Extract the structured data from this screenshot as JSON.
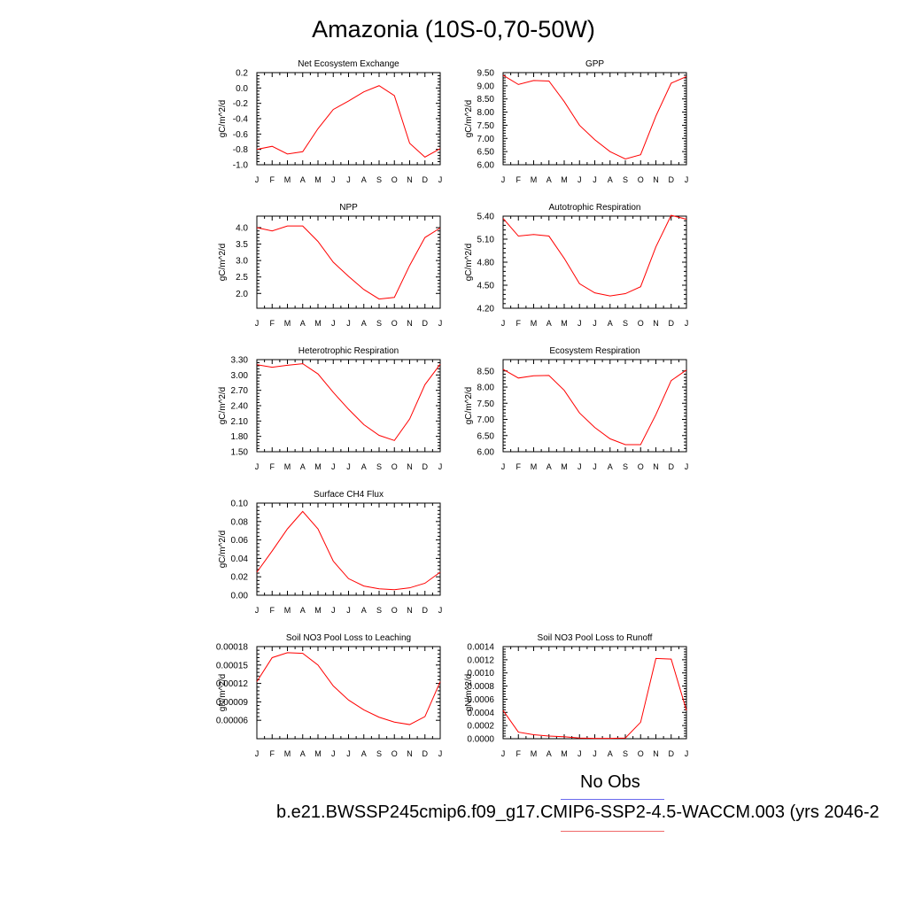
{
  "title": "Amazonia (10S-0,70-50W)",
  "legend": {
    "obs_label": "No Obs",
    "obs_color": "#6a6aee",
    "case_label": "b.e21.BWSSP245cmip6.f09_g17.CMIP6-SSP2-4.5-WACCM.003 (yrs 2046-2",
    "case_color": "#f06a6a"
  },
  "chart_data": [
    {
      "type": "line",
      "title": "Net Ecosystem Exchange",
      "ylabel": "gC/m^2/d",
      "x": [
        "J",
        "F",
        "M",
        "A",
        "M",
        "J",
        "J",
        "A",
        "S",
        "O",
        "N",
        "D",
        "J"
      ],
      "ylim": [
        -1.0,
        0.2
      ],
      "yticks": [
        "-1.0",
        "-0.8",
        "-0.6",
        "-0.4",
        "-0.2",
        "0.0",
        "0.2"
      ],
      "series": [
        {
          "color": "#ff0000",
          "values": [
            -0.8,
            -0.76,
            -0.86,
            -0.83,
            -0.53,
            -0.28,
            -0.17,
            -0.05,
            0.03,
            -0.1,
            -0.72,
            -0.9,
            -0.79
          ]
        }
      ]
    },
    {
      "type": "line",
      "title": "GPP",
      "ylabel": "gC/m^2/d",
      "x": [
        "J",
        "F",
        "M",
        "A",
        "M",
        "J",
        "J",
        "A",
        "S",
        "O",
        "N",
        "D",
        "J"
      ],
      "ylim": [
        6.0,
        9.5
      ],
      "yticks": [
        "6.00",
        "6.50",
        "7.00",
        "7.50",
        "8.00",
        "8.50",
        "9.00",
        "9.50"
      ],
      "series": [
        {
          "color": "#ff0000",
          "values": [
            9.4,
            9.05,
            9.2,
            9.18,
            8.4,
            7.5,
            6.95,
            6.5,
            6.22,
            6.38,
            7.85,
            9.1,
            9.35
          ]
        }
      ]
    },
    {
      "type": "line",
      "title": "NPP",
      "ylabel": "gC/m^2/d",
      "x": [
        "J",
        "F",
        "M",
        "A",
        "M",
        "J",
        "J",
        "A",
        "S",
        "O",
        "N",
        "D",
        "J"
      ],
      "ylim": [
        1.55,
        4.35
      ],
      "yticks": [
        "2.0",
        "2.5",
        "3.0",
        "3.5",
        "4.0"
      ],
      "series": [
        {
          "color": "#ff0000",
          "values": [
            4.0,
            3.9,
            4.05,
            4.05,
            3.58,
            2.95,
            2.52,
            2.12,
            1.83,
            1.88,
            2.85,
            3.7,
            3.99
          ]
        }
      ]
    },
    {
      "type": "line",
      "title": "Autotrophic Respiration",
      "ylabel": "gC/m^2/d",
      "x": [
        "J",
        "F",
        "M",
        "A",
        "M",
        "J",
        "J",
        "A",
        "S",
        "O",
        "N",
        "D",
        "J"
      ],
      "ylim": [
        4.2,
        5.4
      ],
      "yticks": [
        "4.20",
        "4.50",
        "4.80",
        "5.10",
        "5.40"
      ],
      "series": [
        {
          "color": "#ff0000",
          "values": [
            5.37,
            5.14,
            5.16,
            5.14,
            4.85,
            4.52,
            4.4,
            4.36,
            4.39,
            4.48,
            5.0,
            5.41,
            5.36
          ]
        }
      ]
    },
    {
      "type": "line",
      "title": "Heterotrophic Respiration",
      "ylabel": "gC/m^2/d",
      "x": [
        "J",
        "F",
        "M",
        "A",
        "M",
        "J",
        "J",
        "A",
        "S",
        "O",
        "N",
        "D",
        "J"
      ],
      "ylim": [
        1.5,
        3.3
      ],
      "yticks": [
        "1.50",
        "1.80",
        "2.10",
        "2.40",
        "2.70",
        "3.00",
        "3.30"
      ],
      "series": [
        {
          "color": "#ff0000",
          "values": [
            3.2,
            3.15,
            3.19,
            3.22,
            3.02,
            2.66,
            2.33,
            2.03,
            1.82,
            1.72,
            2.14,
            2.81,
            3.21
          ]
        }
      ]
    },
    {
      "type": "line",
      "title": "Ecosystem Respiration",
      "ylabel": "gC/m^2/d",
      "x": [
        "J",
        "F",
        "M",
        "A",
        "M",
        "J",
        "J",
        "A",
        "S",
        "O",
        "N",
        "D",
        "J"
      ],
      "ylim": [
        6.0,
        8.85
      ],
      "yticks": [
        "6.00",
        "6.50",
        "7.00",
        "7.50",
        "8.00",
        "8.50"
      ],
      "series": [
        {
          "color": "#ff0000",
          "values": [
            8.55,
            8.28,
            8.35,
            8.36,
            7.9,
            7.2,
            6.75,
            6.4,
            6.22,
            6.22,
            7.15,
            8.2,
            8.53
          ]
        }
      ]
    },
    {
      "type": "line",
      "title": "Surface CH4 Flux",
      "ylabel": "gC/m^2/d",
      "x": [
        "J",
        "F",
        "M",
        "A",
        "M",
        "J",
        "J",
        "A",
        "S",
        "O",
        "N",
        "D",
        "J"
      ],
      "ylim": [
        0.0,
        0.1
      ],
      "yticks": [
        "0.00",
        "0.02",
        "0.04",
        "0.06",
        "0.08",
        "0.10"
      ],
      "series": [
        {
          "color": "#ff0000",
          "values": [
            0.025,
            0.048,
            0.072,
            0.091,
            0.072,
            0.037,
            0.018,
            0.01,
            0.007,
            0.006,
            0.008,
            0.013,
            0.025
          ]
        }
      ]
    },
    {
      "type": "line",
      "title": "Soil NO3 Pool Loss to Leaching",
      "ylabel": "gN/m^2/d",
      "x": [
        "J",
        "F",
        "M",
        "A",
        "M",
        "J",
        "J",
        "A",
        "S",
        "O",
        "N",
        "D",
        "J"
      ],
      "ylim": [
        3e-05,
        0.00018
      ],
      "yticks": [
        "0.00006",
        "0.00009",
        "0.00012",
        "0.00015",
        "0.00018"
      ],
      "series": [
        {
          "color": "#ff0000",
          "values": [
            0.000123,
            0.000162,
            0.00017,
            0.000169,
            0.00015,
            0.000116,
            9.3e-05,
            7.7e-05,
            6.5e-05,
            5.7e-05,
            5.3e-05,
            6.6e-05,
            0.000123
          ]
        }
      ]
    },
    {
      "type": "line",
      "title": "Soil NO3 Pool Loss to Runoff",
      "ylabel": "gN/m^2/d",
      "x": [
        "J",
        "F",
        "M",
        "A",
        "M",
        "J",
        "J",
        "A",
        "S",
        "O",
        "N",
        "D",
        "J"
      ],
      "ylim": [
        0.0,
        0.0014
      ],
      "yticks": [
        "0.0000",
        "0.0002",
        "0.0004",
        "0.0006",
        "0.0008",
        "0.0010",
        "0.0012",
        "0.0014"
      ],
      "series": [
        {
          "color": "#ff0000",
          "values": [
            0.00043,
            0.0001,
            6e-05,
            4e-05,
            3e-05,
            1e-05,
            5e-06,
            5e-06,
            1e-05,
            0.00025,
            0.00122,
            0.00121,
            0.00043
          ]
        }
      ]
    }
  ]
}
